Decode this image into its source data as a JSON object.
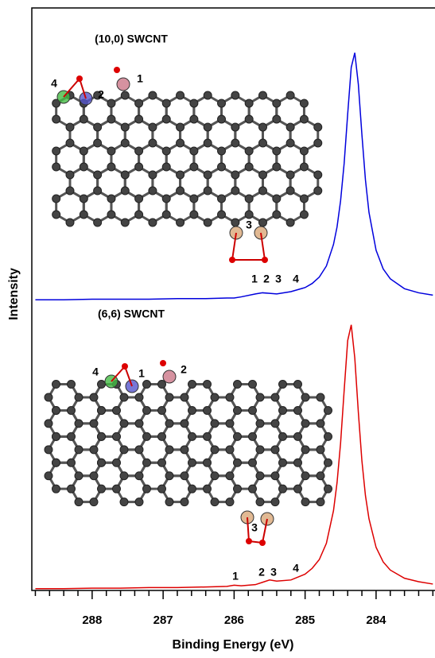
{
  "chart_data": {
    "type": "line",
    "x": [
      288.8,
      288.4,
      288.0,
      287.6,
      287.2,
      286.8,
      286.4,
      286.1,
      286.0,
      285.9,
      285.7,
      285.6,
      285.5,
      285.4,
      285.2,
      285.0,
      284.9,
      284.8,
      284.7,
      284.6,
      284.55,
      284.5,
      284.45,
      284.4,
      284.35,
      284.3,
      284.25,
      284.2,
      284.15,
      284.1,
      284.0,
      283.9,
      283.8,
      283.6,
      283.4,
      283.2
    ],
    "series": [
      {
        "color": "#0000dd",
        "values": [
          49.9,
          49.9,
          50.0,
          50.0,
          50.0,
          50.1,
          50.1,
          50.2,
          50.2,
          50.4,
          50.9,
          51.1,
          51.0,
          50.9,
          51.3,
          52.0,
          52.7,
          53.8,
          55.7,
          59.4,
          62.4,
          66.9,
          73.3,
          81.8,
          89.8,
          92.3,
          86.9,
          78.3,
          70.5,
          64.9,
          58.4,
          55.2,
          53.5,
          51.8,
          51.1,
          50.7
        ]
      },
      {
        "color": "#dd0000",
        "values": [
          0.3,
          0.3,
          0.4,
          0.4,
          0.5,
          0.5,
          0.6,
          0.7,
          0.9,
          0.8,
          1.0,
          1.4,
          1.8,
          1.6,
          1.8,
          2.8,
          3.8,
          5.3,
          8.1,
          13.7,
          18.5,
          25.3,
          34.3,
          42.9,
          45.6,
          39.9,
          30.6,
          22.3,
          16.3,
          12.3,
          7.4,
          4.9,
          3.5,
          2.1,
          1.5,
          1.1
        ]
      }
    ],
    "xlabel": "Binding Energy (eV)",
    "ylabel": "Intensity",
    "xlim": [
      288.85,
      283.17
    ],
    "xticks": [
      288,
      287,
      286,
      285,
      284
    ],
    "xminorticks": [
      288.8,
      288.6,
      288.4,
      288.2,
      287.8,
      287.6,
      287.4,
      287.2,
      286.8,
      286.6,
      286.4,
      286.2,
      285.8,
      285.6,
      285.4,
      285.2,
      284.8,
      284.6,
      284.4,
      284.2,
      283.8,
      283.6,
      283.4,
      283.2
    ],
    "ylim": [
      0,
      100
    ],
    "annotations": [
      {
        "text": "(10,0) SWCNT"
      },
      {
        "text": "1"
      },
      {
        "text": "2"
      },
      {
        "text": "4"
      },
      {
        "text": "3"
      },
      {
        "text": "1"
      },
      {
        "text": "2"
      },
      {
        "text": "3"
      },
      {
        "text": "4"
      },
      {
        "text": "(6,6) SWCNT"
      },
      {
        "text": "4"
      },
      {
        "text": "1"
      },
      {
        "text": "2"
      },
      {
        "text": "3"
      },
      {
        "text": "1"
      },
      {
        "text": "2"
      },
      {
        "text": "3"
      },
      {
        "text": "4"
      }
    ]
  }
}
